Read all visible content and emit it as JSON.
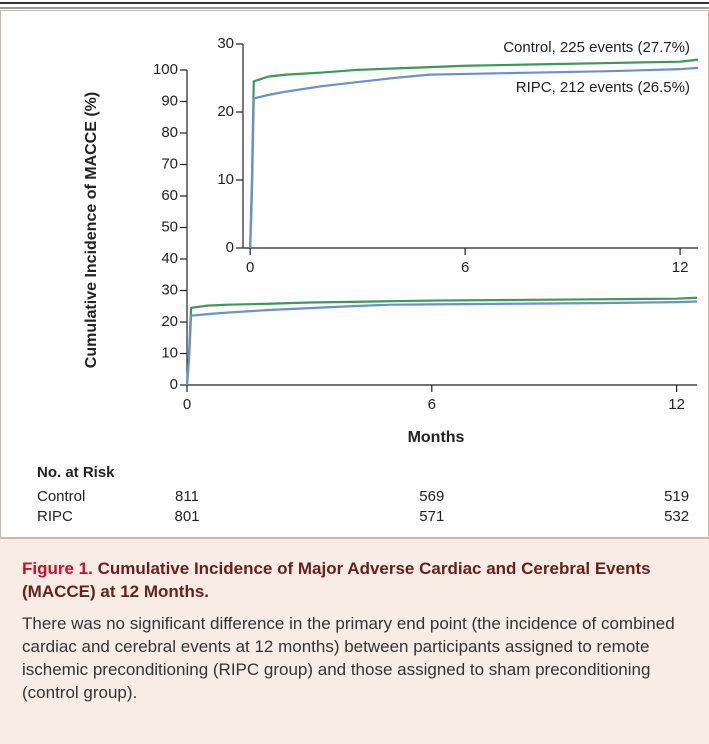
{
  "chart_data": {
    "type": "line",
    "y_label": "Cumulative Incidence of MACCE (%)",
    "x_label": "Months",
    "x": [
      0,
      0.05,
      0.1,
      0.5,
      1,
      2,
      3,
      4,
      5,
      6,
      8,
      10,
      12,
      12.5
    ],
    "series": [
      {
        "name": "Control",
        "color": "#3a9a5a",
        "values": [
          0,
          10,
          24.5,
          25.2,
          25.5,
          25.8,
          26.2,
          26.4,
          26.6,
          26.8,
          27.0,
          27.2,
          27.4,
          27.7
        ]
      },
      {
        "name": "RIPC",
        "color": "#6b8fd0",
        "values": [
          0,
          8,
          22,
          22.5,
          23.0,
          23.8,
          24.4,
          25.0,
          25.5,
          25.6,
          25.8,
          26.0,
          26.3,
          26.5
        ]
      }
    ],
    "annotations": [
      "Control, 225 events (27.7%)",
      "RIPC, 212 events (26.5%)"
    ],
    "xlim": [
      0,
      12.5
    ],
    "xticks": [
      0,
      6,
      12
    ],
    "ylim": [
      0,
      100
    ],
    "yticks": [
      0,
      10,
      20,
      30,
      40,
      50,
      60,
      70,
      80,
      90,
      100
    ],
    "inset": {
      "xlim": [
        -0.2,
        12.5
      ],
      "xticks": [
        0,
        6,
        12
      ],
      "ylim": [
        0,
        30
      ],
      "yticks": [
        0,
        10,
        20,
        30
      ]
    },
    "risk_table": {
      "title": "No. at Risk",
      "rows": [
        {
          "label": "Control",
          "values": [
            811,
            569,
            519
          ]
        },
        {
          "label": "RIPC",
          "values": [
            801,
            571,
            532
          ]
        }
      ]
    }
  },
  "caption": {
    "figure": "Figure 1.",
    "heading": "Cumulative Incidence of Major Adverse Cardiac and Cerebral Events (MACCE) at 12 Months.",
    "text": "There was no significant difference in the primary end point (the incidence of combined cardiac and cerebral events at 12 months) between participants assigned to remote ischemic preconditioning (RIPC group) and those assigned to sham preconditioning (control group)."
  }
}
